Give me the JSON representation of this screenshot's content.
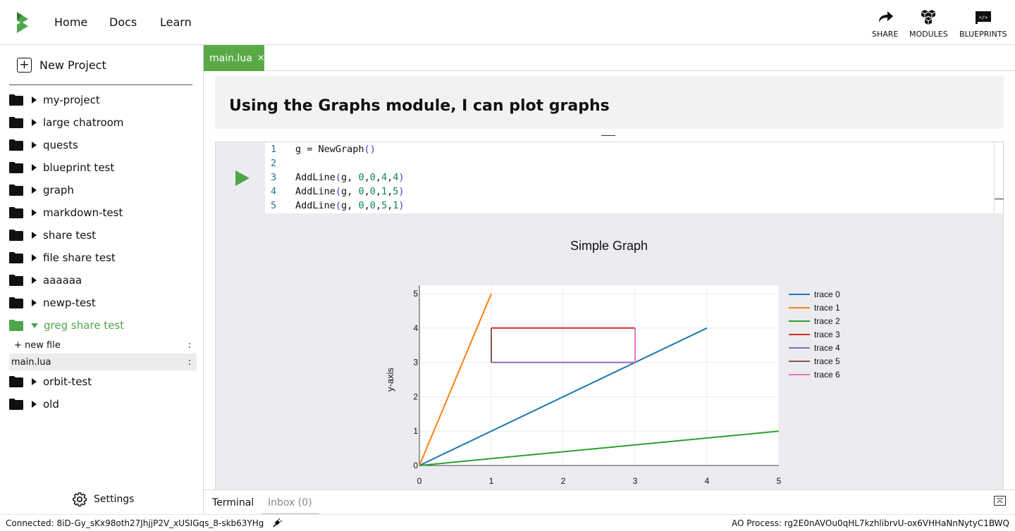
{
  "nav": {
    "links": [
      "Home",
      "Docs",
      "Learn"
    ],
    "actions": [
      {
        "label": "SHARE",
        "icon": "share-icon"
      },
      {
        "label": "MODULES",
        "icon": "modules-icon"
      },
      {
        "label": "BLUEPRINTS",
        "icon": "blueprints-icon"
      }
    ]
  },
  "sidebar": {
    "new_project_label": "New Project",
    "projects": [
      {
        "name": "my-project"
      },
      {
        "name": "large chatroom"
      },
      {
        "name": "quests"
      },
      {
        "name": "blueprint test"
      },
      {
        "name": "graph"
      },
      {
        "name": "markdown-test"
      },
      {
        "name": "share test"
      },
      {
        "name": "file share test"
      },
      {
        "name": "aaaaaa"
      },
      {
        "name": "newp-test"
      },
      {
        "name": "greg share test",
        "open": true,
        "children": [
          "+ new file",
          "main.lua"
        ]
      },
      {
        "name": "orbit-test"
      },
      {
        "name": "old"
      }
    ],
    "settings_label": "Settings"
  },
  "editor": {
    "tab_label": "main.lua",
    "tab_close": "×",
    "markdown_heading": "Using the Graphs module, I can plot graphs",
    "code_lines": [
      {
        "n": "1",
        "text": "g = NewGraph()"
      },
      {
        "n": "2",
        "text": ""
      },
      {
        "n": "3",
        "text": "AddLine(g, 0,0,4,4)"
      },
      {
        "n": "4",
        "text": "AddLine(g, 0,0,1,5)"
      },
      {
        "n": "5",
        "text": "AddLine(g, 0,0,5,1)"
      }
    ]
  },
  "chart_data": {
    "type": "line",
    "title": "Simple Graph",
    "xlabel": "",
    "ylabel": "y-axis",
    "xlim": [
      0,
      5
    ],
    "ylim": [
      0,
      5
    ],
    "xticks": [
      "0",
      "1",
      "2",
      "3",
      "4",
      "5"
    ],
    "yticks": [
      "0",
      "1",
      "2",
      "3",
      "4",
      "5"
    ],
    "grid": true,
    "legend": "right",
    "series": [
      {
        "name": "trace 0",
        "color": "#1f77b4",
        "x": [
          0,
          4
        ],
        "y": [
          0,
          4
        ]
      },
      {
        "name": "trace 1",
        "color": "#ff7f0e",
        "x": [
          0,
          1
        ],
        "y": [
          0,
          5
        ]
      },
      {
        "name": "trace 2",
        "color": "#2ca02c",
        "x": [
          0,
          5
        ],
        "y": [
          0,
          1
        ]
      },
      {
        "name": "trace 3",
        "color": "#d62728",
        "x": [
          1,
          3
        ],
        "y": [
          4,
          4
        ]
      },
      {
        "name": "trace 4",
        "color": "#9467bd",
        "x": [
          1,
          3
        ],
        "y": [
          3,
          3
        ]
      },
      {
        "name": "trace 5",
        "color": "#8c564b",
        "x": [
          1,
          1
        ],
        "y": [
          3,
          4
        ]
      },
      {
        "name": "trace 6",
        "color": "#e377c2",
        "x": [
          3,
          3
        ],
        "y": [
          3,
          4
        ]
      }
    ]
  },
  "bottom": {
    "tabs": [
      "Terminal",
      "Inbox (0)"
    ]
  },
  "status": {
    "connected": "Connected: 8iD-Gy_sKx98oth27JhjjP2V_xUSIGqs_8-skb63YHg",
    "process": "AO Process: rg2E0nAVOu0qHL7kzhlibrvU-ox6VHHaNnNytyC1BWQ"
  },
  "colors": {
    "accent": "#5aa947"
  }
}
